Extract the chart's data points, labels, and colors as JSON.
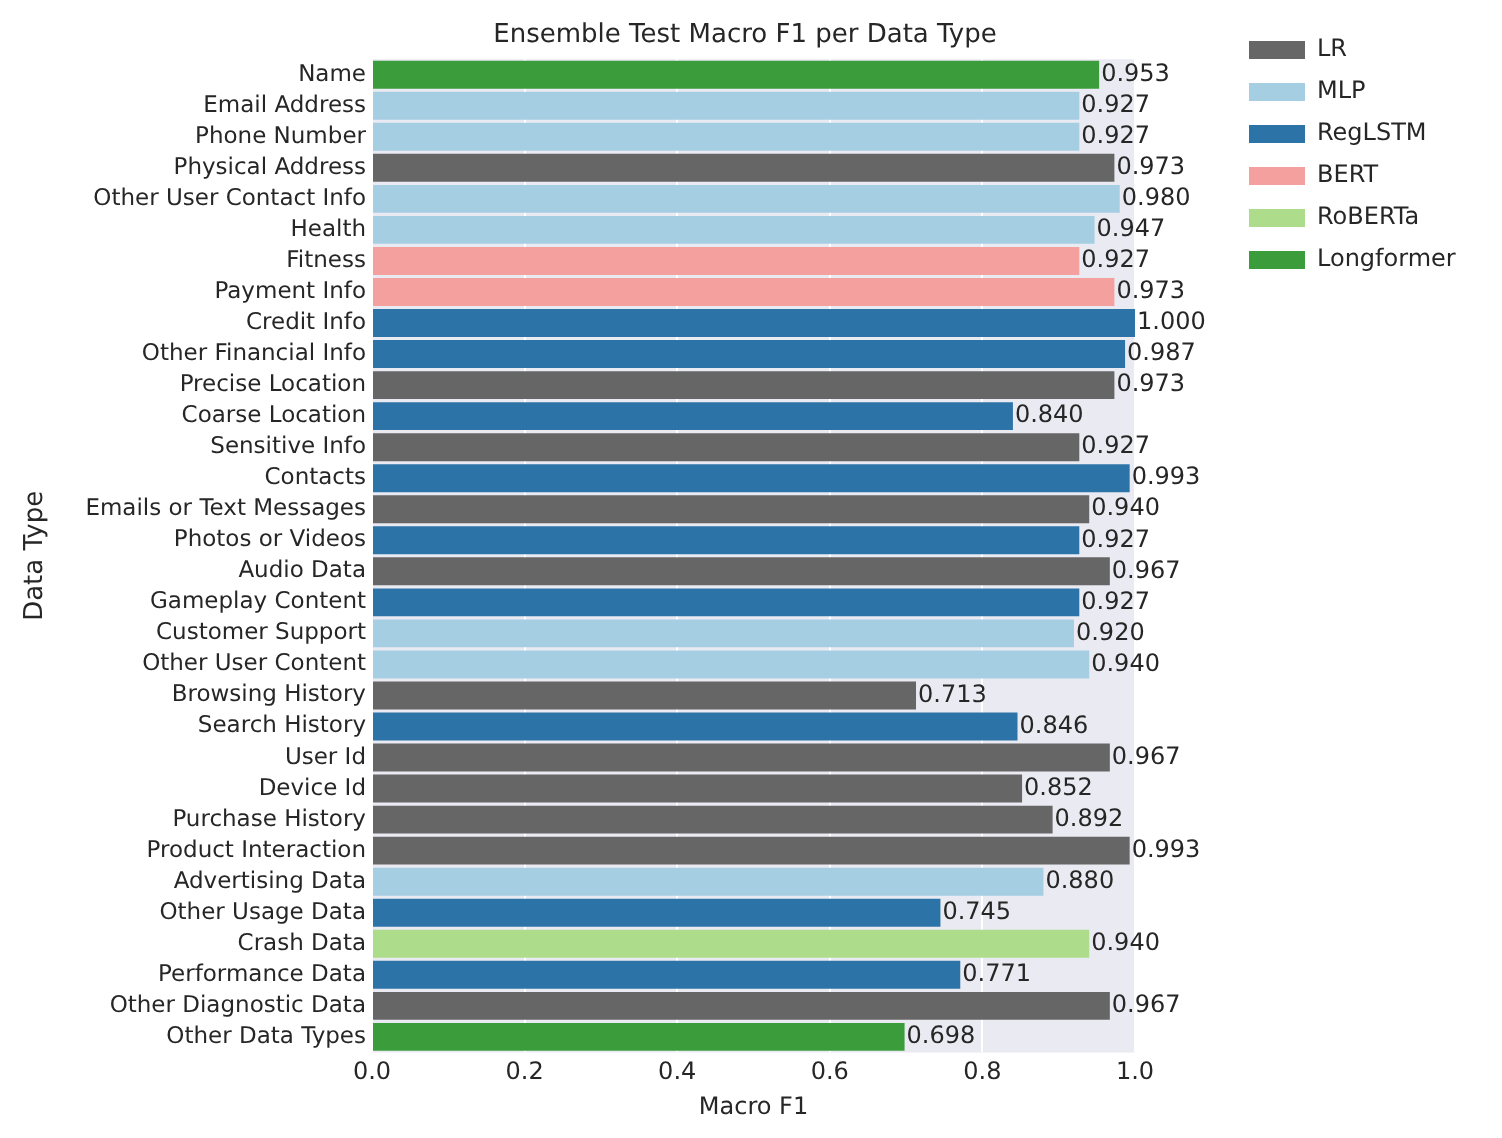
{
  "chart_data": {
    "type": "bar",
    "orientation": "horizontal",
    "title": "Ensemble Test Macro F1 per Data Type",
    "xlabel": "Macro F1",
    "ylabel": "Data Type",
    "categories": [
      "Name",
      "Email Address",
      "Phone Number",
      "Physical Address",
      "Other User Contact Info",
      "Health",
      "Fitness",
      "Payment Info",
      "Credit Info",
      "Other Financial Info",
      "Precise Location",
      "Coarse Location",
      "Sensitive Info",
      "Contacts",
      "Emails or Text Messages",
      "Photos or Videos",
      "Audio Data",
      "Gameplay Content",
      "Customer Support",
      "Other User Content",
      "Browsing History",
      "Search History",
      "User Id",
      "Device Id",
      "Purchase History",
      "Product Interaction",
      "Advertising Data",
      "Other Usage Data",
      "Crash Data",
      "Performance Data",
      "Other Diagnostic Data",
      "Other Data Types"
    ],
    "series": [
      {
        "name": "LR",
        "color": "#666666",
        "values": [
          null,
          null,
          null,
          0.973,
          null,
          null,
          null,
          null,
          null,
          null,
          0.973,
          null,
          0.927,
          null,
          0.94,
          null,
          0.967,
          null,
          null,
          null,
          0.713,
          null,
          0.967,
          0.852,
          0.892,
          0.993,
          null,
          null,
          null,
          null,
          0.967,
          null
        ],
        "value_labels": [
          null,
          null,
          null,
          "0.973",
          null,
          null,
          null,
          null,
          null,
          null,
          "0.973",
          null,
          "0.927",
          null,
          "0.940",
          null,
          "0.967",
          null,
          null,
          null,
          "0.713",
          null,
          "0.967",
          "0.852",
          "0.892",
          "0.993",
          null,
          null,
          null,
          null,
          "0.967",
          null
        ]
      },
      {
        "name": "MLP",
        "color": "#a6cee3",
        "values": [
          null,
          0.927,
          0.927,
          null,
          0.98,
          0.947,
          null,
          null,
          null,
          null,
          null,
          null,
          null,
          null,
          null,
          null,
          null,
          null,
          0.92,
          0.94,
          null,
          null,
          null,
          null,
          null,
          null,
          0.88,
          null,
          null,
          null,
          null,
          null
        ],
        "value_labels": [
          null,
          "0.927",
          "0.927",
          null,
          "0.980",
          "0.947",
          null,
          null,
          null,
          null,
          null,
          null,
          null,
          null,
          null,
          null,
          null,
          null,
          "0.920",
          "0.940",
          null,
          null,
          null,
          null,
          null,
          null,
          "0.880",
          null,
          null,
          null,
          null,
          null
        ]
      },
      {
        "name": "RegLSTM",
        "color": "#2c73a8",
        "values": [
          null,
          null,
          null,
          null,
          null,
          null,
          null,
          null,
          1.0,
          0.987,
          null,
          0.84,
          null,
          0.993,
          null,
          0.927,
          null,
          0.927,
          null,
          null,
          null,
          0.846,
          null,
          null,
          null,
          null,
          null,
          0.745,
          null,
          0.771,
          null,
          null
        ],
        "value_labels": [
          null,
          null,
          null,
          null,
          null,
          null,
          null,
          null,
          "1.000",
          "0.987",
          null,
          "0.840",
          null,
          "0.993",
          null,
          "0.927",
          null,
          "0.927",
          null,
          null,
          null,
          "0.846",
          null,
          null,
          null,
          null,
          null,
          "0.745",
          null,
          "0.771",
          null,
          null
        ]
      },
      {
        "name": "BERT",
        "color": "#f4a09f",
        "values": [
          null,
          null,
          null,
          null,
          null,
          null,
          0.927,
          0.973,
          null,
          null,
          null,
          null,
          null,
          null,
          null,
          null,
          null,
          null,
          null,
          null,
          null,
          null,
          null,
          null,
          null,
          null,
          null,
          null,
          null,
          null,
          null,
          null
        ],
        "value_labels": [
          null,
          null,
          null,
          null,
          null,
          null,
          "0.927",
          "0.973",
          null,
          null,
          null,
          null,
          null,
          null,
          null,
          null,
          null,
          null,
          null,
          null,
          null,
          null,
          null,
          null,
          null,
          null,
          null,
          null,
          null,
          null,
          null,
          null
        ]
      },
      {
        "name": "RoBERTa",
        "color": "#addc8a",
        "values": [
          null,
          null,
          null,
          null,
          null,
          null,
          null,
          null,
          null,
          null,
          null,
          null,
          null,
          null,
          null,
          null,
          null,
          null,
          null,
          null,
          null,
          null,
          null,
          null,
          null,
          null,
          null,
          null,
          0.94,
          null,
          null,
          null
        ],
        "value_labels": [
          null,
          null,
          null,
          null,
          null,
          null,
          null,
          null,
          null,
          null,
          null,
          null,
          null,
          null,
          null,
          null,
          null,
          null,
          null,
          null,
          null,
          null,
          null,
          null,
          null,
          null,
          null,
          null,
          "0.940",
          null,
          null,
          null
        ]
      },
      {
        "name": "Longformer",
        "color": "#3a9c3a",
        "values": [
          0.953,
          null,
          null,
          null,
          null,
          null,
          null,
          null,
          null,
          null,
          null,
          null,
          null,
          null,
          null,
          null,
          null,
          null,
          null,
          null,
          null,
          null,
          null,
          null,
          null,
          null,
          null,
          null,
          null,
          null,
          null,
          0.698
        ],
        "value_labels": [
          "0.953",
          null,
          null,
          null,
          null,
          null,
          null,
          null,
          null,
          null,
          null,
          null,
          null,
          null,
          null,
          null,
          null,
          null,
          null,
          null,
          null,
          null,
          null,
          null,
          null,
          null,
          null,
          null,
          null,
          null,
          null,
          "0.698"
        ]
      }
    ],
    "xlim": [
      0,
      1
    ],
    "xticks": [
      {
        "value": 0,
        "label": "0.0"
      },
      {
        "value": 0.2,
        "label": "0.2"
      },
      {
        "value": 0.4,
        "label": "0.4"
      },
      {
        "value": 0.6,
        "label": "0.6"
      },
      {
        "value": 0.8,
        "label": "0.8"
      },
      {
        "value": 1,
        "label": "1.0"
      }
    ],
    "grid": "x",
    "legend": "top right"
  }
}
